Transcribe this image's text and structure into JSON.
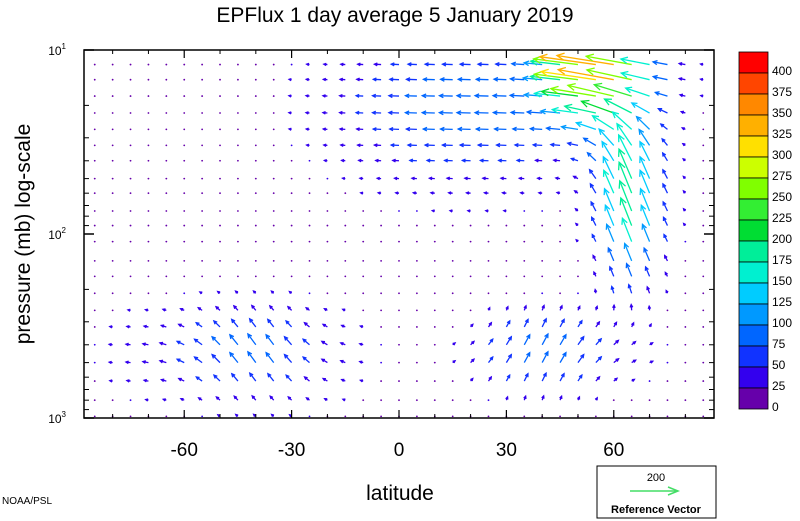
{
  "chart_data": {
    "type": "quiver",
    "title": "EPFlux  1 day average  5 January   2019",
    "xlabel": "latitude",
    "ylabel": "pressure (mb)  log-scale",
    "x_ticks": [
      -60,
      -30,
      0,
      30,
      60
    ],
    "y_ticks": [
      {
        "value": 10,
        "base": "10",
        "exp": "1"
      },
      {
        "value": 100,
        "base": "10",
        "exp": "2"
      },
      {
        "value": 1000,
        "base": "10",
        "exp": "3"
      }
    ],
    "xlim": [
      -88,
      88
    ],
    "ylim": [
      10,
      1000
    ],
    "y_scale": "log",
    "colorbar": {
      "levels": [
        "400",
        "375",
        "350",
        "325",
        "300",
        "275",
        "250",
        "225",
        "200",
        "175",
        "150",
        "125",
        "100",
        "75",
        "50",
        "25",
        "0"
      ],
      "colors": [
        "#ff0000",
        "#ff4500",
        "#ff8800",
        "#ffb000",
        "#ffe000",
        "#ccff00",
        "#80ff00",
        "#33ee33",
        "#00dd33",
        "#00ee99",
        "#00f0d0",
        "#00ccff",
        "#0099ff",
        "#0066ff",
        "#1133ff",
        "#3300ee",
        "#6600aa"
      ]
    },
    "reference_vector": {
      "magnitude": "200",
      "label": "Reference Vector"
    },
    "grid_lat": [
      -85,
      -80,
      -75,
      -70,
      -65,
      -60,
      -55,
      -50,
      -45,
      -40,
      -35,
      -30,
      -25,
      -20,
      -15,
      -10,
      -5,
      0,
      5,
      10,
      15,
      20,
      25,
      30,
      35,
      40,
      45,
      50,
      55,
      60,
      65,
      70,
      75,
      80,
      85
    ],
    "grid_p": [
      12,
      14.5,
      17.8,
      22,
      27,
      33,
      40,
      50,
      60,
      75,
      90,
      110,
      140,
      170,
      210,
      260,
      320,
      400,
      500,
      630,
      800,
      980
    ]
  },
  "credit": "NOAA/PSL"
}
